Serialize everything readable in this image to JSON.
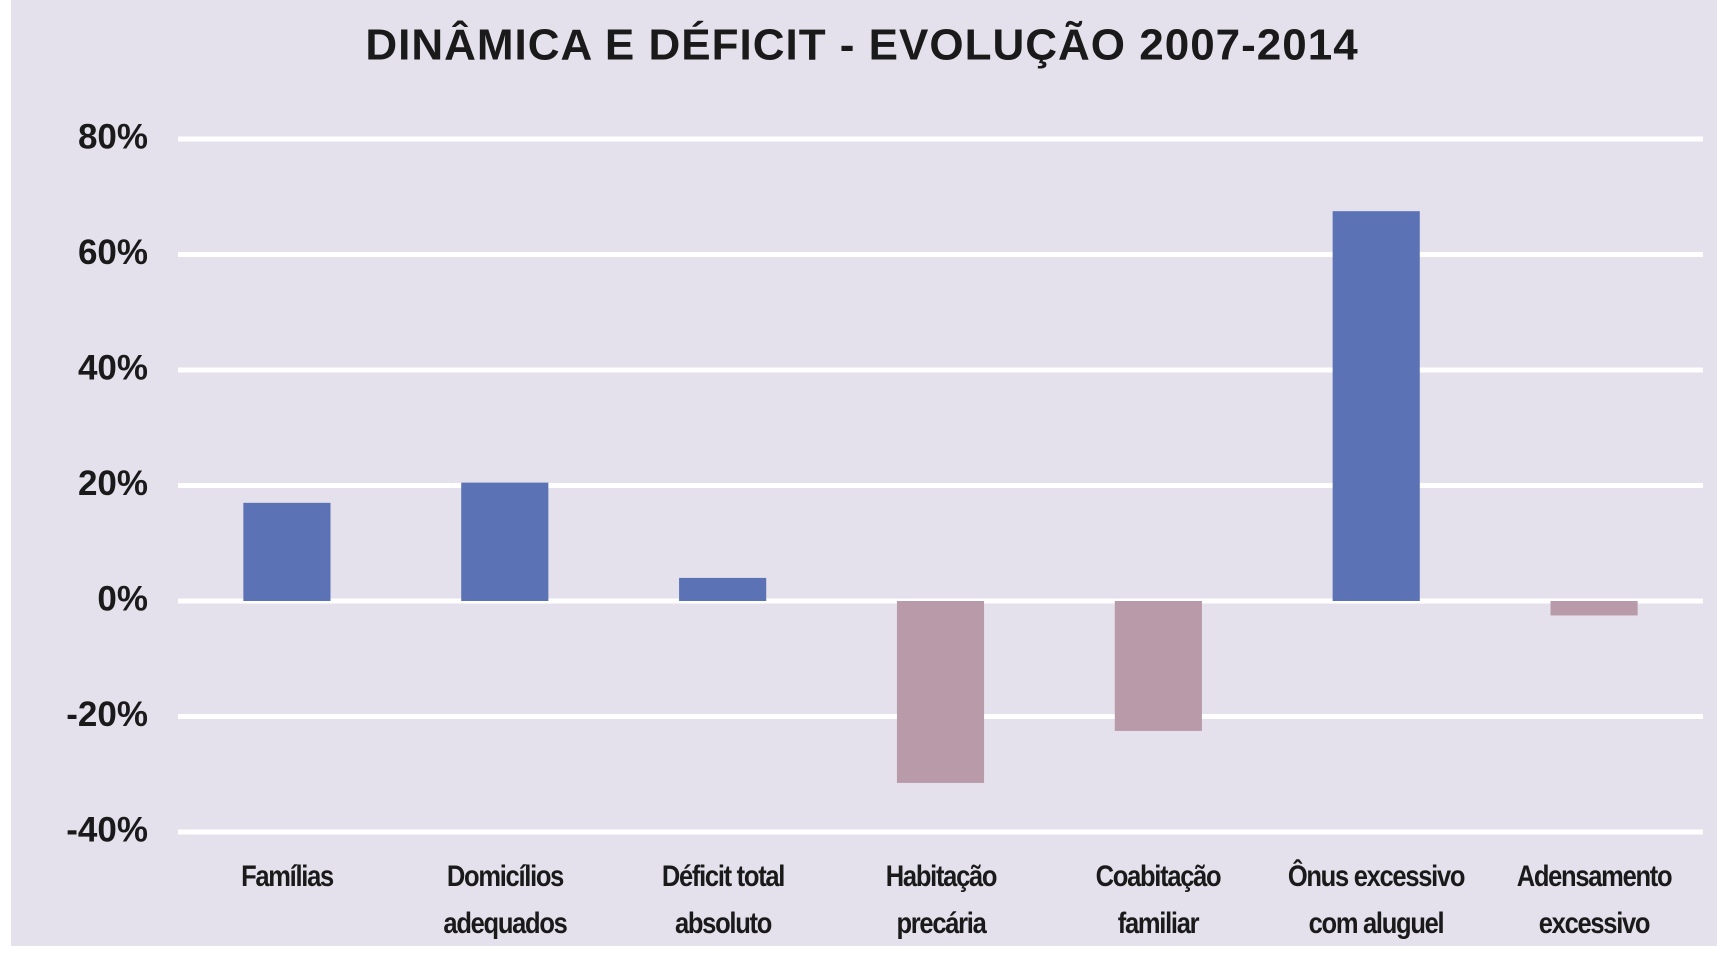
{
  "chart_data": {
    "type": "bar",
    "title": "DINÂMICA E DÉFICIT - EVOLUÇÃO 2007-2014",
    "categories": [
      "Famílias",
      "Domicílios\nadequados",
      "Déficit total\nabsoluto",
      "Habitação\nprecária",
      "Coabitação\nfamiliar",
      "Ônus excessivo\ncom aluguel",
      "Adensamento\nexcessivo"
    ],
    "values": [
      17,
      20.5,
      4,
      -31.5,
      -22.5,
      67.5,
      -2.5
    ],
    "colors": [
      "#5b72b5",
      "#5b72b5",
      "#5b72b5",
      "#b99aa8",
      "#b99aa8",
      "#5b72b5",
      "#b99aa8"
    ],
    "ylim": [
      -40,
      80
    ],
    "yticks": [
      {
        "value": -40,
        "label": "-40%"
      },
      {
        "value": -20,
        "label": "-20%"
      },
      {
        "value": 0,
        "label": "0%"
      },
      {
        "value": 20,
        "label": "20%"
      },
      {
        "value": 40,
        "label": "40%"
      },
      {
        "value": 60,
        "label": "60%"
      },
      {
        "value": 80,
        "label": "80%"
      }
    ],
    "grid": true
  }
}
